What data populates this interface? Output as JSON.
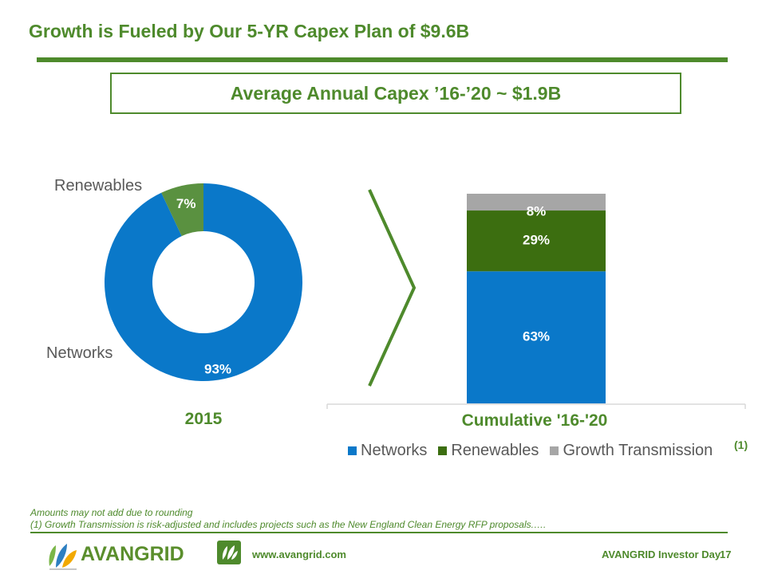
{
  "slide": {
    "title": "Growth is Fueled by Our 5-YR Capex Plan of $9.6B",
    "callout": "Average Annual Capex ’16-’20 ~ $1.9B",
    "label_renewables": "Renewables",
    "label_networks": "Networks",
    "footnote_marker": "(1)"
  },
  "colors": {
    "networks": "#0a78c9",
    "renewables": "#3c6e10",
    "renewables_donut": "#5a9140",
    "growth_transmission": "#a6a6a6",
    "accent": "#4e8a2c"
  },
  "chart_data": [
    {
      "type": "pie",
      "variant": "donut",
      "category": "2015",
      "slices": [
        {
          "name": "Networks",
          "value": 93,
          "label": "93%"
        },
        {
          "name": "Renewables",
          "value": 7,
          "label": "7%"
        }
      ]
    },
    {
      "type": "bar",
      "variant": "stacked-100",
      "categories": [
        "Cumulative '16-'20"
      ],
      "series": [
        {
          "name": "Networks",
          "values": [
            63
          ],
          "labels": [
            "63%"
          ]
        },
        {
          "name": "Renewables",
          "values": [
            29
          ],
          "labels": [
            "29%"
          ]
        },
        {
          "name": "Growth Transmission",
          "values": [
            8
          ],
          "labels": [
            "8%"
          ]
        }
      ],
      "legend": "bottom"
    }
  ],
  "notes": {
    "line1": "Amounts may not add due to rounding",
    "line2": "(1)  Growth Transmission is risk-adjusted and includes projects such as the New England Clean Energy RFP proposals.…."
  },
  "footer": {
    "brand": "AVANGRID",
    "url": "www.avangrid.com",
    "event": "AVANGRID Investor Day",
    "page": "17"
  }
}
